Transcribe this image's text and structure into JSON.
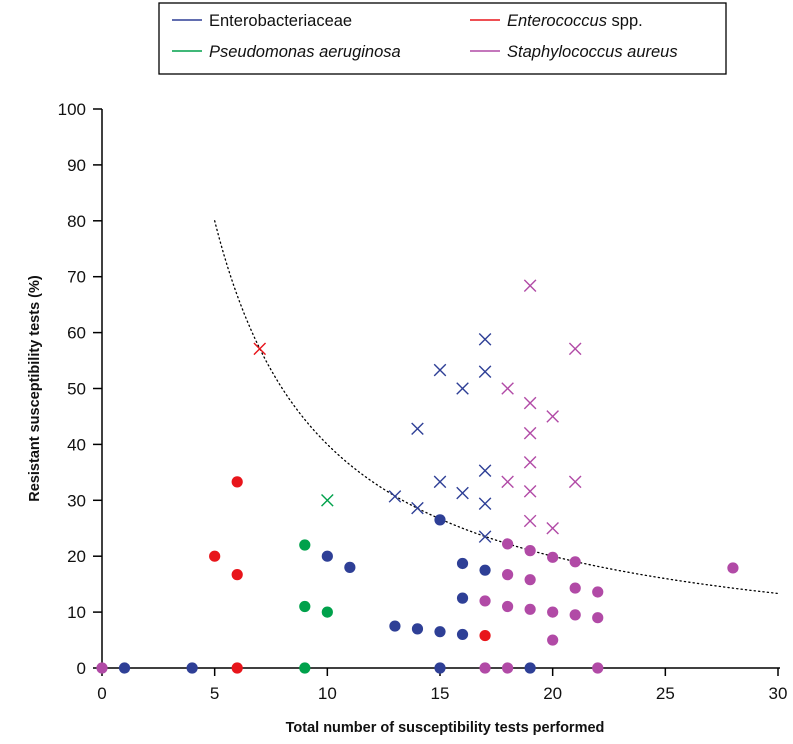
{
  "chart_data": {
    "type": "scatter",
    "title": "",
    "xlabel": "Total number of susceptibility tests performed",
    "ylabel": "Resistant susceptibility tests (%)",
    "xlim": [
      0,
      30
    ],
    "ylim": [
      0,
      100
    ],
    "xticks": [
      0,
      5,
      10,
      15,
      20,
      25,
      30
    ],
    "yticks": [
      0,
      10,
      20,
      30,
      40,
      50,
      60,
      70,
      80,
      90,
      100
    ],
    "grid": false,
    "legend_position": "top-center",
    "legend": [
      {
        "series": "enterobacteriaceae",
        "prefix": "Enterobacteriaceae",
        "suffix": "",
        "italic": false
      },
      {
        "series": "enterococcus",
        "prefix": "Enterococcus",
        "suffix": " spp.",
        "italic": true
      },
      {
        "series": "pseudomonas",
        "prefix": "Pseudomonas aeruginosa",
        "suffix": "",
        "italic": true
      },
      {
        "series": "staphylococcus",
        "prefix": "Staphylococcus aureus",
        "suffix": "",
        "italic": true
      }
    ],
    "marker_meaning": {
      "dot": "filled circle",
      "cross": "x marker"
    },
    "series": [
      {
        "id": "enterobacteriaceae",
        "name": "Enterobacteriaceae",
        "color": "#2e3f96",
        "dots": [
          [
            1,
            0
          ],
          [
            4,
            0
          ],
          [
            10,
            20
          ],
          [
            11,
            18
          ],
          [
            13,
            7.5
          ],
          [
            14,
            7
          ],
          [
            15,
            6.5
          ],
          [
            15,
            26.5
          ],
          [
            15,
            0
          ],
          [
            16,
            18.7
          ],
          [
            16,
            12.5
          ],
          [
            16,
            6
          ],
          [
            17,
            17.5
          ],
          [
            19,
            0
          ]
        ],
        "crosses": [
          [
            13,
            30.7
          ],
          [
            14,
            28.6
          ],
          [
            14,
            42.8
          ],
          [
            15,
            33.3
          ],
          [
            15,
            53.3
          ],
          [
            16,
            31.3
          ],
          [
            16,
            50
          ],
          [
            17,
            23.5
          ],
          [
            17,
            29.4
          ],
          [
            17,
            35.3
          ],
          [
            17,
            53
          ],
          [
            17,
            58.8
          ]
        ]
      },
      {
        "id": "enterococcus",
        "name": "Enterococcus spp.",
        "color": "#e8151b",
        "dots": [
          [
            5,
            20
          ],
          [
            6,
            33.3
          ],
          [
            6,
            16.7
          ],
          [
            6,
            0
          ],
          [
            17,
            5.8
          ]
        ],
        "crosses": [
          [
            7,
            57.1
          ]
        ]
      },
      {
        "id": "pseudomonas",
        "name": "Pseudomonas aeruginosa",
        "color": "#00a14b",
        "dots": [
          [
            9,
            22
          ],
          [
            9,
            11
          ],
          [
            9,
            0
          ],
          [
            10,
            10
          ]
        ],
        "crosses": [
          [
            10,
            30
          ]
        ]
      },
      {
        "id": "staphylococcus",
        "name": "Staphylococcus aureus",
        "color": "#b14aa6",
        "dots": [
          [
            0,
            0
          ],
          [
            17,
            12
          ],
          [
            17,
            0
          ],
          [
            18,
            22.2
          ],
          [
            18,
            16.7
          ],
          [
            18,
            11
          ],
          [
            18,
            0
          ],
          [
            19,
            21
          ],
          [
            19,
            15.8
          ],
          [
            19,
            10.5
          ],
          [
            20,
            19.8
          ],
          [
            20,
            10
          ],
          [
            20,
            5
          ],
          [
            21,
            19
          ],
          [
            21,
            14.3
          ],
          [
            21,
            9.5
          ],
          [
            22,
            13.6
          ],
          [
            22,
            9
          ],
          [
            22,
            0
          ],
          [
            28,
            17.9
          ]
        ],
        "crosses": [
          [
            18,
            33.3
          ],
          [
            18,
            50
          ],
          [
            19,
            26.3
          ],
          [
            19,
            31.6
          ],
          [
            19,
            36.8
          ],
          [
            19,
            42
          ],
          [
            19,
            47.4
          ],
          [
            19,
            68.4
          ],
          [
            20,
            25
          ],
          [
            20,
            45
          ],
          [
            21,
            33.3
          ],
          [
            21,
            57.1
          ]
        ]
      }
    ],
    "threshold_curve": {
      "style": "dotted",
      "color": "#000000",
      "x_from": 5,
      "x_to": 30,
      "function": "y = 400 / x"
    }
  }
}
